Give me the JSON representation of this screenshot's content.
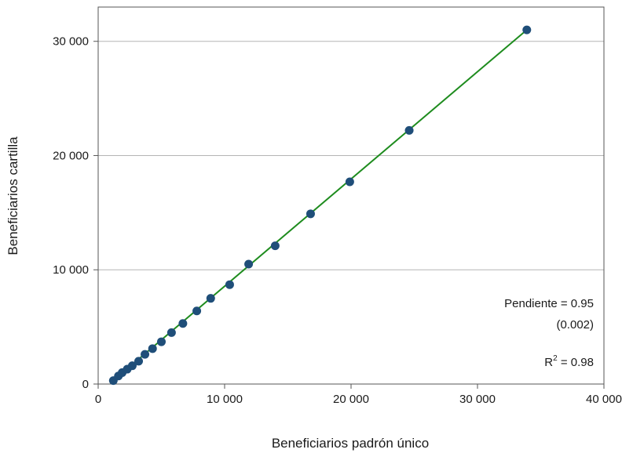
{
  "chart_data": {
    "type": "scatter",
    "xlabel": "Beneficiarios padrón único",
    "ylabel": "Beneficiarios cartilla",
    "xlim": [
      0,
      40000
    ],
    "ylim": [
      0,
      33000
    ],
    "x_ticks": [
      0,
      10000,
      20000,
      30000,
      40000
    ],
    "x_tick_labels": [
      "0",
      "10 000",
      "20 000",
      "30 000",
      "40 000"
    ],
    "y_ticks": [
      0,
      10000,
      20000,
      30000
    ],
    "y_tick_labels": [
      "0",
      "10 000",
      "20 000",
      "30 000"
    ],
    "grid": "horizontal",
    "points": [
      {
        "x": 1200,
        "y": 300
      },
      {
        "x": 1600,
        "y": 700
      },
      {
        "x": 1900,
        "y": 1000
      },
      {
        "x": 2300,
        "y": 1300
      },
      {
        "x": 2700,
        "y": 1600
      },
      {
        "x": 3200,
        "y": 2000
      },
      {
        "x": 3700,
        "y": 2600
      },
      {
        "x": 4300,
        "y": 3100
      },
      {
        "x": 5000,
        "y": 3700
      },
      {
        "x": 5800,
        "y": 4500
      },
      {
        "x": 6700,
        "y": 5300
      },
      {
        "x": 7800,
        "y": 6400
      },
      {
        "x": 8900,
        "y": 7500
      },
      {
        "x": 10400,
        "y": 8700
      },
      {
        "x": 11900,
        "y": 10500
      },
      {
        "x": 14000,
        "y": 12100
      },
      {
        "x": 16800,
        "y": 14900
      },
      {
        "x": 19900,
        "y": 17700
      },
      {
        "x": 24600,
        "y": 22200
      },
      {
        "x": 33900,
        "y": 31000
      }
    ],
    "fit_line": {
      "x": [
        1200,
        33900
      ],
      "y": [
        300,
        31000
      ]
    },
    "annotations": {
      "slope_label": "Pendiente = 0.95",
      "slope_se": "(0.002)",
      "r2_prefix": "R",
      "r2_sup": "2",
      "r2_suffix": " = 0.98"
    },
    "colors": {
      "points": "#1f4e79",
      "line": "#1e8c1e"
    }
  }
}
